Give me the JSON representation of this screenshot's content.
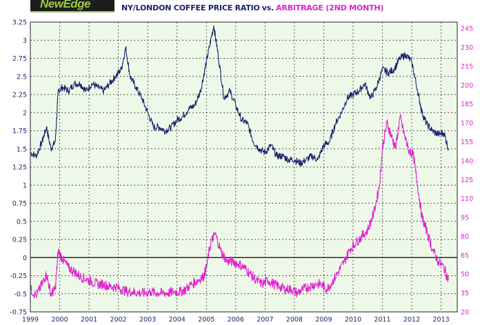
{
  "logo_text": "NewEdge",
  "title": {
    "part_a": "NY/LONDON COFFEE PRICE RATIO",
    "separator": "vs.",
    "part_b": "ARBITRAGE (2ND MONTH)"
  },
  "colors": {
    "ratio": "#1a1f6e",
    "arbitrage": "#e020d0",
    "plot_background": "#eef8e8",
    "grid": "#1a1a1a",
    "zero_line": "#000000"
  },
  "chart_data": {
    "type": "line",
    "x_range": [
      1999.0,
      2013.55
    ],
    "x_ticks": [
      "1999",
      "2000",
      "2001",
      "2002",
      "2003",
      "2004",
      "2005",
      "2006",
      "2007",
      "2008",
      "2009",
      "2010",
      "2011",
      "2012",
      "2013"
    ],
    "left_axis": {
      "ylim": [
        -0.75,
        3.25
      ],
      "ticks": [
        "3.25",
        "3",
        "2.75",
        "2.5",
        "2.25",
        "2",
        "1.75",
        "1.5",
        "1.25",
        "1",
        "0.75",
        "0.5",
        "0.25",
        "0",
        "-0.25",
        "-0.5",
        "-0.75"
      ],
      "color": "#1a1f6e"
    },
    "right_axis": {
      "ylim": [
        20,
        250
      ],
      "ticks": [
        "245",
        "230",
        "215",
        "200",
        "185",
        "170",
        "155",
        "140",
        "125",
        "110",
        "95",
        "80",
        "65",
        "50",
        "35",
        "20"
      ],
      "color": "#e020d0"
    },
    "grid": true,
    "series": [
      {
        "axis": "left",
        "x": [
          1999.0,
          1999.2,
          1999.4,
          1999.55,
          1999.7,
          1999.85,
          1999.95,
          2000.1,
          2000.3,
          2000.5,
          2000.7,
          2000.9,
          2001.1,
          2001.3,
          2001.5,
          2001.7,
          2001.9,
          2002.1,
          2002.25,
          2002.4,
          2002.6,
          2002.8,
          2003.0,
          2003.2,
          2003.4,
          2003.6,
          2003.8,
          2004.0,
          2004.2,
          2004.4,
          2004.6,
          2004.8,
          2004.95,
          2005.1,
          2005.25,
          2005.4,
          2005.6,
          2005.8,
          2006.0,
          2006.2,
          2006.4,
          2006.6,
          2006.8,
          2007.0,
          2007.2,
          2007.4,
          2007.6,
          2007.8,
          2008.0,
          2008.2,
          2008.4,
          2008.6,
          2008.8,
          2009.0,
          2009.2,
          2009.4,
          2009.6,
          2009.8,
          2010.0,
          2010.2,
          2010.4,
          2010.6,
          2010.8,
          2011.0,
          2011.2,
          2011.4,
          2011.6,
          2011.8,
          2012.0,
          2012.2,
          2012.35,
          2012.5,
          2012.7,
          2012.9,
          2013.1,
          2013.25
        ],
        "y": [
          1.45,
          1.4,
          1.6,
          1.8,
          1.5,
          1.6,
          2.3,
          2.35,
          2.3,
          2.4,
          2.4,
          2.3,
          2.4,
          2.35,
          2.3,
          2.4,
          2.5,
          2.6,
          2.9,
          2.5,
          2.35,
          2.2,
          2.0,
          1.8,
          1.8,
          1.75,
          1.8,
          1.9,
          1.95,
          2.05,
          2.1,
          2.3,
          2.6,
          2.9,
          3.2,
          2.8,
          2.2,
          2.3,
          2.1,
          1.9,
          1.85,
          1.6,
          1.5,
          1.45,
          1.55,
          1.4,
          1.4,
          1.35,
          1.35,
          1.3,
          1.35,
          1.4,
          1.35,
          1.55,
          1.6,
          1.85,
          2.0,
          2.2,
          2.25,
          2.3,
          2.4,
          2.2,
          2.35,
          2.6,
          2.55,
          2.6,
          2.75,
          2.8,
          2.7,
          2.3,
          2.0,
          1.85,
          1.75,
          1.7,
          1.72,
          1.5
        ]
      },
      {
        "axis": "right",
        "x": [
          1999.0,
          1999.2,
          1999.4,
          1999.55,
          1999.7,
          1999.85,
          1999.95,
          2000.1,
          2000.3,
          2000.5,
          2000.7,
          2000.9,
          2001.1,
          2001.3,
          2001.5,
          2001.7,
          2001.9,
          2002.1,
          2002.3,
          2002.5,
          2002.7,
          2002.9,
          2003.1,
          2003.3,
          2003.5,
          2003.7,
          2003.9,
          2004.1,
          2004.3,
          2004.5,
          2004.7,
          2004.9,
          2005.0,
          2005.15,
          2005.3,
          2005.5,
          2005.7,
          2005.9,
          2006.1,
          2006.3,
          2006.5,
          2006.7,
          2006.9,
          2007.1,
          2007.3,
          2007.5,
          2007.7,
          2007.9,
          2008.1,
          2008.3,
          2008.5,
          2008.7,
          2008.9,
          2009.1,
          2009.3,
          2009.5,
          2009.7,
          2009.9,
          2010.1,
          2010.3,
          2010.5,
          2010.7,
          2010.9,
          2011.0,
          2011.15,
          2011.3,
          2011.45,
          2011.6,
          2011.75,
          2011.9,
          2012.05,
          2012.2,
          2012.35,
          2012.5,
          2012.7,
          2012.9,
          2013.1,
          2013.25
        ],
        "y": [
          38,
          33,
          42,
          50,
          34,
          38,
          68,
          62,
          55,
          52,
          48,
          46,
          44,
          42,
          42,
          40,
          40,
          38,
          36,
          36,
          35,
          35,
          36,
          35,
          35,
          35,
          36,
          36,
          38,
          42,
          45,
          48,
          55,
          75,
          82,
          68,
          60,
          60,
          58,
          55,
          50,
          45,
          42,
          45,
          42,
          40,
          38,
          38,
          35,
          38,
          40,
          42,
          42,
          38,
          44,
          52,
          60,
          70,
          75,
          80,
          85,
          98,
          120,
          150,
          170,
          160,
          150,
          175,
          160,
          148,
          145,
          120,
          95,
          85,
          70,
          60,
          55,
          45
        ]
      }
    ]
  }
}
